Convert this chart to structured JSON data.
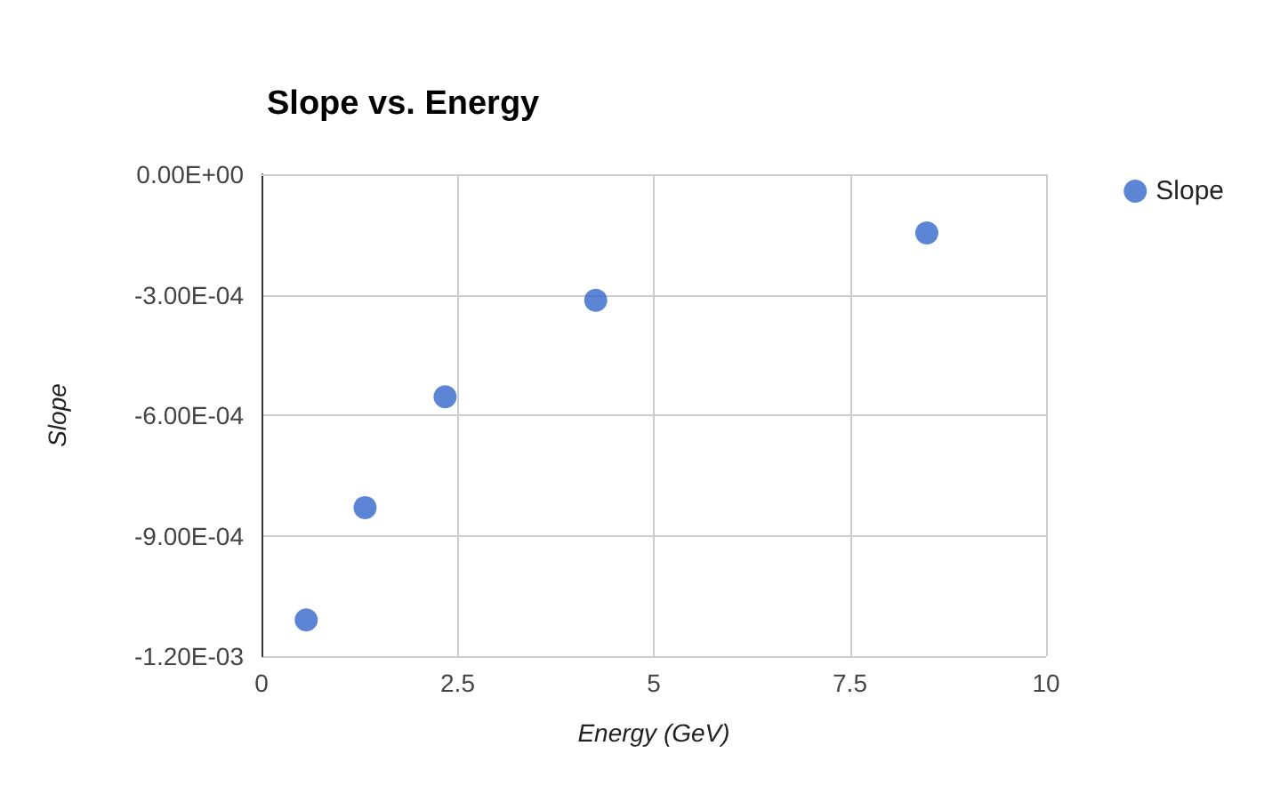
{
  "chart_data": {
    "type": "scatter",
    "title": "Slope vs. Energy",
    "xlabel": "Energy (GeV)",
    "ylabel": "Slope",
    "x": [
      0.57,
      1.32,
      2.34,
      4.26,
      8.48
    ],
    "series": [
      {
        "name": "Slope",
        "color": "#3366cc",
        "values": [
          -0.00111,
          -0.00083,
          -0.000554,
          -0.000314,
          -0.000146
        ]
      }
    ],
    "xlim": [
      0,
      10
    ],
    "xticks": [
      0,
      2.5,
      5,
      7.5,
      10
    ],
    "ylim": [
      -0.0012,
      0
    ],
    "yticks": [
      {
        "value": -0.0012,
        "label": "-1.20E-03"
      },
      {
        "value": -0.0009,
        "label": "-9.00E-04"
      },
      {
        "value": -0.0006,
        "label": "-6.00E-04"
      },
      {
        "value": -0.0003,
        "label": "-3.00E-04"
      },
      {
        "value": 0,
        "label": "0.00E+00"
      }
    ],
    "grid": true,
    "legend": "top right",
    "marker": "circle"
  }
}
